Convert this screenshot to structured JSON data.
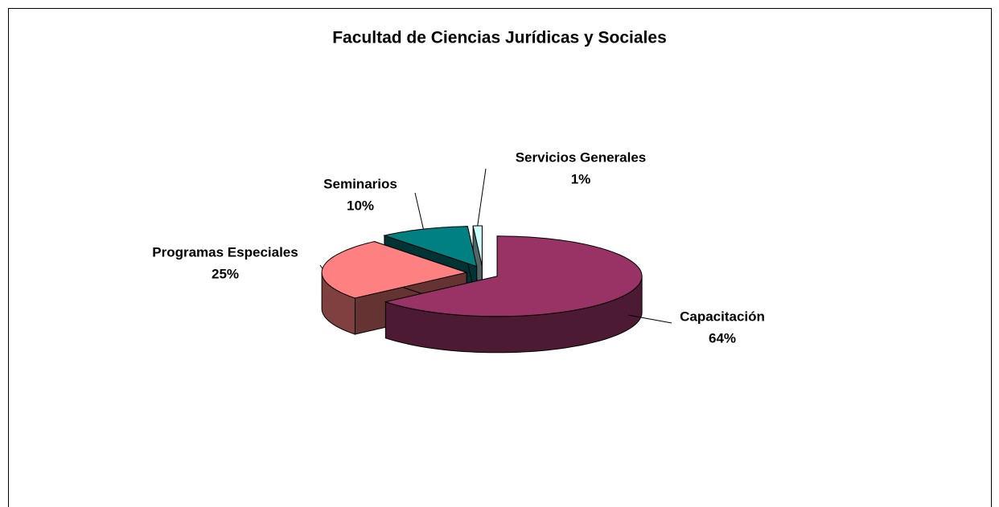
{
  "chart_data": {
    "type": "pie",
    "title": "Facultad de Ciencias Jurídicas y Sociales",
    "categories": [
      "Capacitación",
      "Programas Especiales",
      "Seminarios",
      "Servicios Generales"
    ],
    "values": [
      64,
      25,
      10,
      1
    ],
    "value_labels": [
      "64%",
      "25%",
      "10%",
      "1%"
    ],
    "colors": [
      "#993366",
      "#ff8080",
      "#008080",
      "#ccffff"
    ]
  }
}
